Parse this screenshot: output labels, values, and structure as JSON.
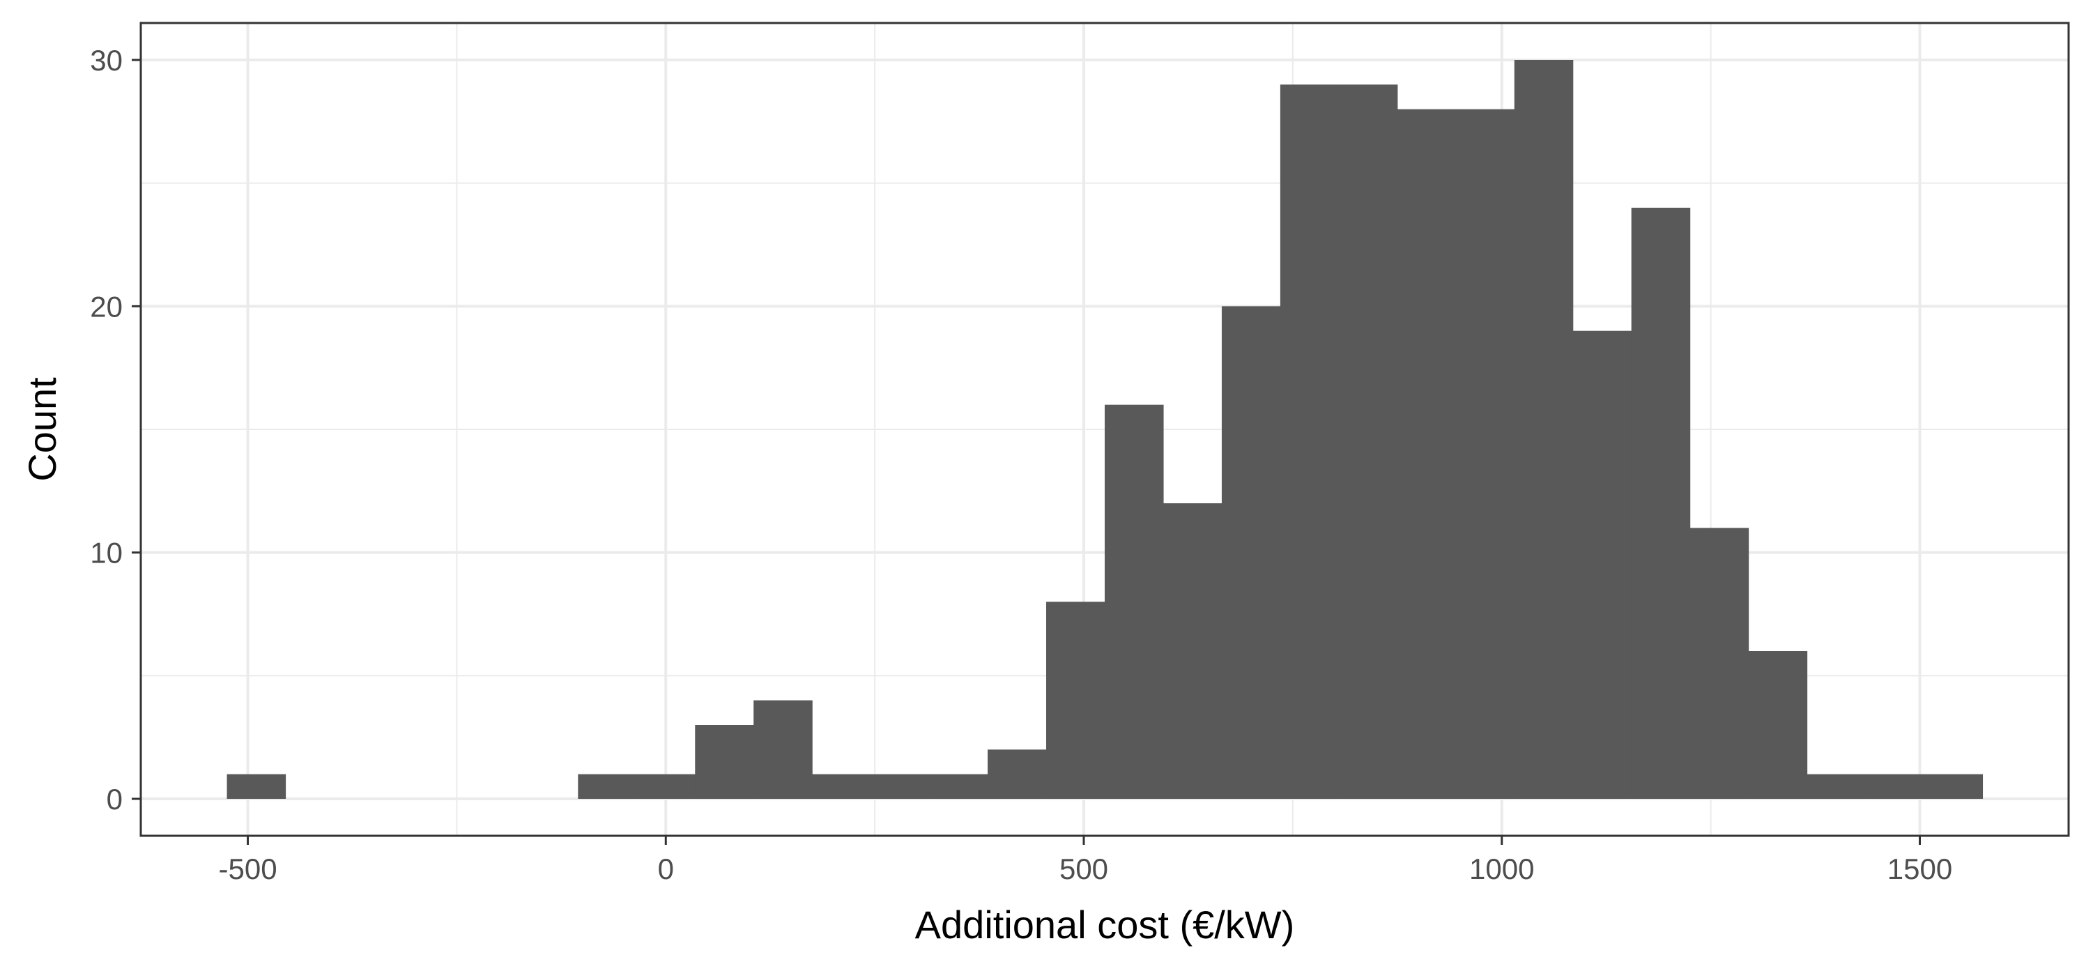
{
  "chart_data": {
    "type": "bar",
    "subtype": "histogram",
    "title": "",
    "xlabel": "Additional cost (€/kW)",
    "ylabel": "Count",
    "bin_width": 70,
    "bins": [
      {
        "start": -525,
        "end": -455,
        "count": 1
      },
      {
        "start": -105,
        "end": -35,
        "count": 1
      },
      {
        "start": -35,
        "end": 35,
        "count": 1
      },
      {
        "start": 35,
        "end": 105,
        "count": 3
      },
      {
        "start": 105,
        "end": 175,
        "count": 4
      },
      {
        "start": 175,
        "end": 245,
        "count": 1
      },
      {
        "start": 245,
        "end": 315,
        "count": 1
      },
      {
        "start": 315,
        "end": 385,
        "count": 1
      },
      {
        "start": 385,
        "end": 455,
        "count": 2
      },
      {
        "start": 455,
        "end": 525,
        "count": 8
      },
      {
        "start": 525,
        "end": 595,
        "count": 16
      },
      {
        "start": 595,
        "end": 665,
        "count": 12
      },
      {
        "start": 665,
        "end": 735,
        "count": 20
      },
      {
        "start": 735,
        "end": 805,
        "count": 29
      },
      {
        "start": 805,
        "end": 875,
        "count": 29
      },
      {
        "start": 875,
        "end": 945,
        "count": 28
      },
      {
        "start": 945,
        "end": 1015,
        "count": 28
      },
      {
        "start": 1015,
        "end": 1085,
        "count": 30
      },
      {
        "start": 1085,
        "end": 1155,
        "count": 19
      },
      {
        "start": 1155,
        "end": 1225,
        "count": 24
      },
      {
        "start": 1225,
        "end": 1295,
        "count": 11
      },
      {
        "start": 1295,
        "end": 1365,
        "count": 6
      },
      {
        "start": 1365,
        "end": 1435,
        "count": 1
      },
      {
        "start": 1435,
        "end": 1505,
        "count": 1
      },
      {
        "start": 1505,
        "end": 1575,
        "count": 1
      }
    ],
    "xlim": [
      -628,
      1678
    ],
    "ylim": [
      -1.5,
      31.5
    ],
    "x_ticks": [
      -500,
      0,
      500,
      1000,
      1500
    ],
    "x_tick_labels": [
      "-500",
      "0",
      "500",
      "1000",
      "1500"
    ],
    "x_minor_ticks": [
      -250,
      250,
      750,
      1250
    ],
    "y_ticks": [
      0,
      10,
      20,
      30
    ],
    "y_tick_labels": [
      "0",
      "10",
      "20",
      "30"
    ],
    "y_minor_ticks": [
      5,
      15,
      25
    ],
    "grid": true,
    "legend": "none",
    "colors": {
      "bar_fill": "#595959",
      "grid": "#ebebeb",
      "panel_border": "#333333",
      "tick_label": "#4d4d4d",
      "axis_title": "#000000"
    }
  }
}
